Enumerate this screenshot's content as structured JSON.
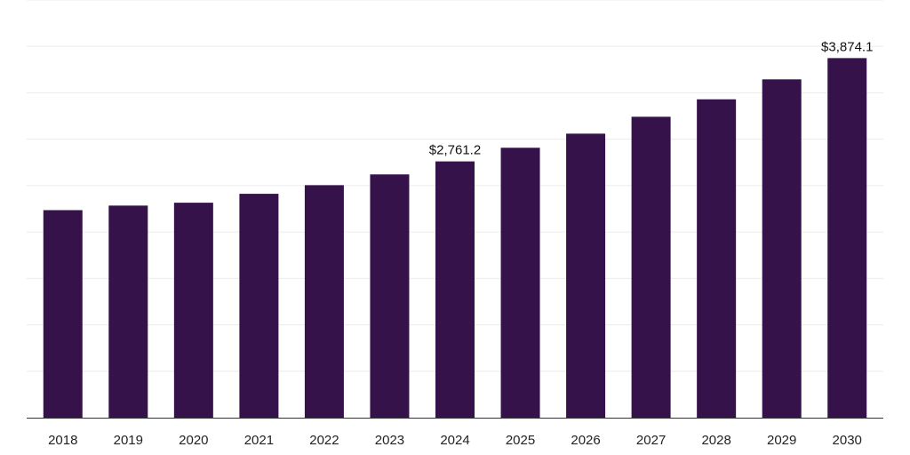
{
  "chart_data": {
    "type": "bar",
    "categories": [
      "2018",
      "2019",
      "2020",
      "2021",
      "2022",
      "2023",
      "2024",
      "2025",
      "2026",
      "2027",
      "2028",
      "2029",
      "2030"
    ],
    "values": [
      2236,
      2285,
      2316,
      2412,
      2505,
      2621,
      2761.2,
      2908,
      3060,
      3242,
      3430,
      3645,
      3874.1
    ],
    "data_labels": [
      {
        "index": 6,
        "text": "$2,761.2"
      },
      {
        "index": 12,
        "text": "$3,874.1"
      }
    ],
    "title": "",
    "xlabel": "",
    "ylabel": "",
    "ylim": [
      0,
      4500
    ],
    "grid": true,
    "legend": "none",
    "colors": {
      "bar": "#36124a",
      "grid": "#ececec",
      "axis": "#333333"
    }
  }
}
